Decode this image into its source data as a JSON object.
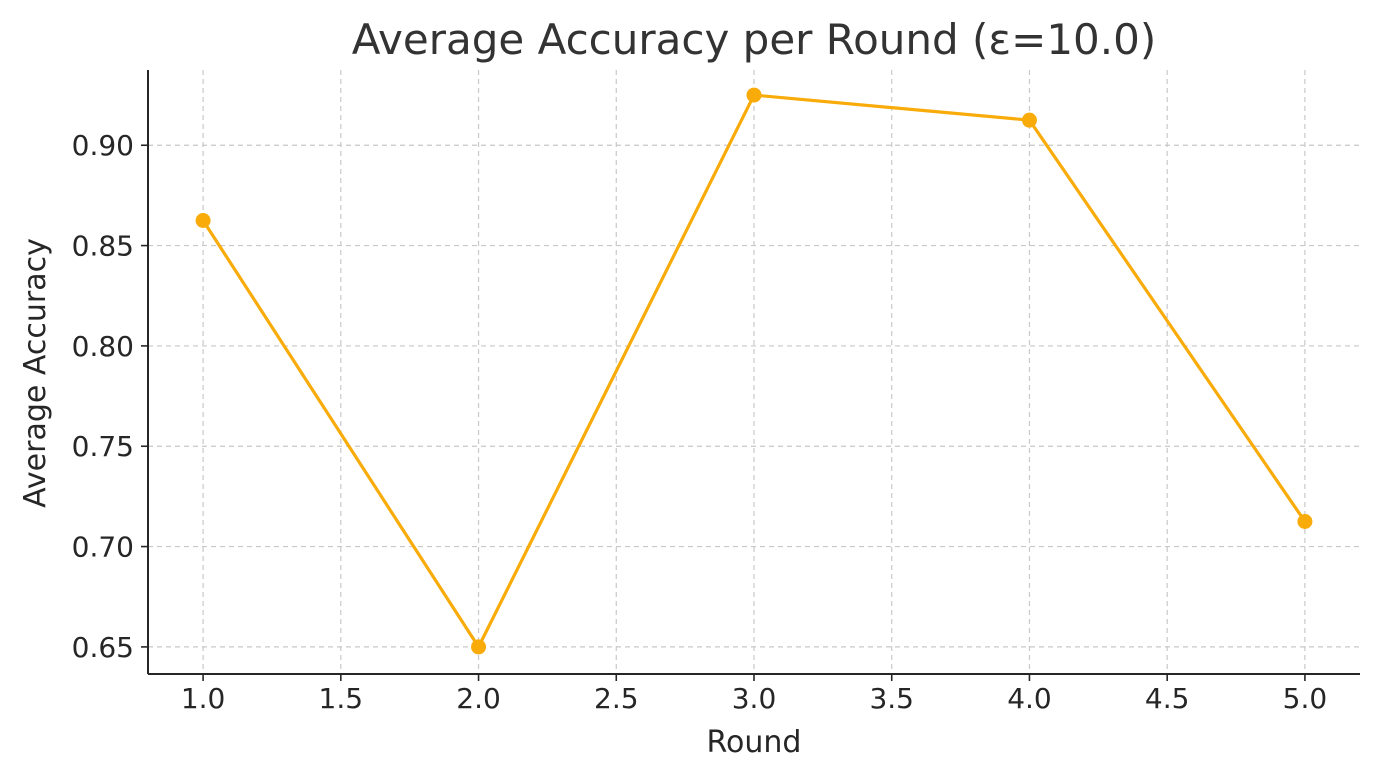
{
  "chart_data": {
    "type": "line",
    "title": "Average Accuracy per Round (ε=10.0)",
    "xlabel": "Round",
    "ylabel": "Average Accuracy",
    "xlim": [
      0.8,
      5.2
    ],
    "ylim": [
      0.6365,
      0.9375
    ],
    "xticks": [
      1.0,
      1.5,
      2.0,
      2.5,
      3.0,
      3.5,
      4.0,
      4.5,
      5.0
    ],
    "xtick_labels": [
      "1.0",
      "1.5",
      "2.0",
      "2.5",
      "3.0",
      "3.5",
      "4.0",
      "4.5",
      "5.0"
    ],
    "yticks": [
      0.65,
      0.7,
      0.75,
      0.8,
      0.85,
      0.9
    ],
    "ytick_labels": [
      "0.65",
      "0.70",
      "0.75",
      "0.80",
      "0.85",
      "0.90"
    ],
    "grid": true,
    "series": [
      {
        "name": "Average Accuracy",
        "color": "#F9AB0A",
        "marker": "circle",
        "x": [
          1,
          2,
          3,
          4,
          5
        ],
        "y": [
          0.8625,
          0.65,
          0.925,
          0.9125,
          0.7125
        ]
      }
    ]
  }
}
